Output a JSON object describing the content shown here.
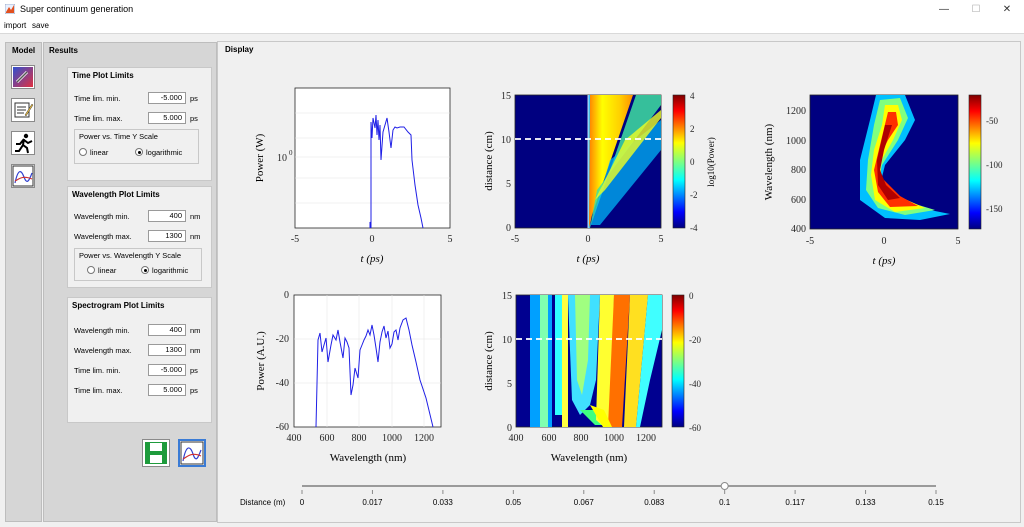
{
  "window": {
    "title": "Super continuum generation",
    "minimize": "—",
    "maximize": "☐",
    "close": "✕"
  },
  "menu": {
    "import": "import",
    "save": "save"
  },
  "model_panel": {
    "title": "Model"
  },
  "results_panel": {
    "title": "Results"
  },
  "time_plot": {
    "title": "Time Plot Limits",
    "min_label": "Time lim. min.",
    "min_value": "-5.000",
    "min_unit": "ps",
    "max_label": "Time lim. max.",
    "max_value": "5.000",
    "max_unit": "ps",
    "scale_title": "Power vs. Time Y Scale",
    "linear": "linear",
    "log": "logarithmic",
    "selected": "logarithmic"
  },
  "wavelength_plot": {
    "title": "Wavelength Plot Limits",
    "min_label": "Wavelength min.",
    "min_value": "400",
    "min_unit": "nm",
    "max_label": "Wavelength max.",
    "max_value": "1300",
    "max_unit": "nm",
    "scale_title": "Power vs. Wavelength Y Scale",
    "linear": "linear",
    "log": "logarithmic",
    "selected": "logarithmic"
  },
  "spectrogram_plot": {
    "title": "Spectrogram Plot Limits",
    "wmin_label": "Wavelength min.",
    "wmin_value": "400",
    "wmin_unit": "nm",
    "wmax_label": "Wavelength max.",
    "wmax_value": "1300",
    "wmax_unit": "nm",
    "tmin_label": "Time lim. min.",
    "tmin_value": "-5.000",
    "tmin_unit": "ps",
    "tmax_label": "Time lim. max.",
    "tmax_value": "5.000",
    "tmax_unit": "ps"
  },
  "display": {
    "title": "Display"
  },
  "plots": {
    "time_power": {
      "ylabel": "Power (W)",
      "xlabel": "t  (ps)",
      "ytick": "10",
      "xticks": [
        "-5",
        "0",
        "5"
      ]
    },
    "time_evolution": {
      "ylabel": "distance (cm)",
      "xlabel": "t  (ps)",
      "yticks": [
        "15",
        "10",
        "5",
        "0"
      ],
      "xticks": [
        "-5",
        "0",
        "5"
      ],
      "cbar_label": "log10(Power)",
      "cbar_ticks": [
        "4",
        "2",
        "0",
        "-2",
        "-4"
      ]
    },
    "spectrogram": {
      "ylabel": "Wavelength (nm)",
      "xlabel": "t  (ps)",
      "yticks": [
        "1200",
        "1000",
        "800",
        "600",
        "400"
      ],
      "xticks": [
        "-5",
        "0",
        "5"
      ],
      "cbar_ticks": [
        "-50",
        "-100",
        "-150"
      ]
    },
    "spectrum": {
      "ylabel": "Power (A.U.)",
      "xlabel": "Wavelength (nm)",
      "yticks": [
        "0",
        "-20",
        "-40",
        "-60"
      ],
      "xticks": [
        "400",
        "600",
        "800",
        "1000",
        "1200"
      ]
    },
    "spectral_evolution": {
      "ylabel": "distance (cm)",
      "xlabel": "Wavelength (nm)",
      "yticks": [
        "15",
        "10",
        "5",
        "0"
      ],
      "xticks": [
        "400",
        "600",
        "800",
        "1000",
        "1200"
      ],
      "cbar_ticks": [
        "0",
        "-20",
        "-40",
        "-60"
      ]
    }
  },
  "slider": {
    "label": "Distance (m)",
    "ticks": [
      "0",
      "0.017",
      "0.033",
      "0.05",
      "0.067",
      "0.083",
      "0.1",
      "0.117",
      "0.133",
      "0.15"
    ],
    "value": 0.1,
    "max": 0.15
  },
  "colors": {
    "line": "#1f1fe6",
    "dashed": "#ffffff",
    "jet_low": "#00007f",
    "jet_high": "#7f0000"
  }
}
